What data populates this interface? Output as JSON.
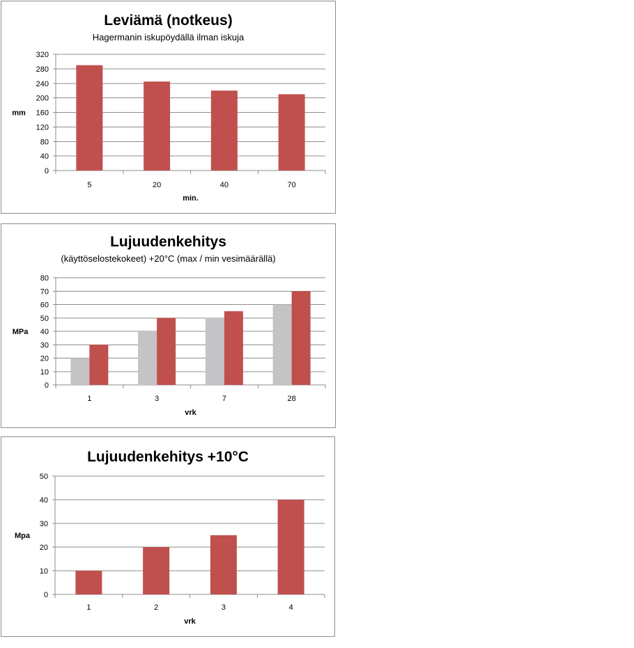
{
  "chart_data": [
    {
      "type": "bar",
      "title": "Leviämä (notkeus)",
      "subtitle": "Hagermanin iskupöydällä ilman iskuja",
      "xlabel": "min.",
      "ylabel": "mm",
      "categories": [
        "5",
        "20",
        "40",
        "70"
      ],
      "series": [
        {
          "values": [
            290,
            245,
            220,
            210
          ],
          "color": "#c0504d"
        }
      ],
      "ylim": [
        0,
        320
      ],
      "yticks": [
        0,
        40,
        80,
        120,
        160,
        200,
        240,
        280,
        320
      ],
      "grid": true
    },
    {
      "type": "bar",
      "title": "Lujuudenkehitys",
      "subtitle": "(käyttöselostekokeet) +20°C (max / min vesimäärällä)",
      "xlabel": "vrk",
      "ylabel": "MPa",
      "categories": [
        "1",
        "3",
        "7",
        "28"
      ],
      "series": [
        {
          "values": [
            20,
            40,
            50,
            60
          ],
          "color": "#c4c3c6"
        },
        {
          "values": [
            30,
            50,
            55,
            70
          ],
          "color": "#c0504d"
        }
      ],
      "ylim": [
        0,
        80
      ],
      "yticks": [
        0,
        10,
        20,
        30,
        40,
        50,
        60,
        70,
        80
      ],
      "grid": true
    },
    {
      "type": "bar",
      "title": "Lujuudenkehitys +10°C",
      "subtitle": "",
      "xlabel": "vrk",
      "ylabel": "Mpa",
      "categories": [
        "1",
        "2",
        "3",
        "4"
      ],
      "series": [
        {
          "values": [
            10,
            20,
            25,
            40
          ],
          "color": "#c0504d"
        }
      ],
      "ylim": [
        0,
        50
      ],
      "yticks": [
        0,
        10,
        20,
        30,
        40,
        50
      ],
      "grid": true
    }
  ]
}
